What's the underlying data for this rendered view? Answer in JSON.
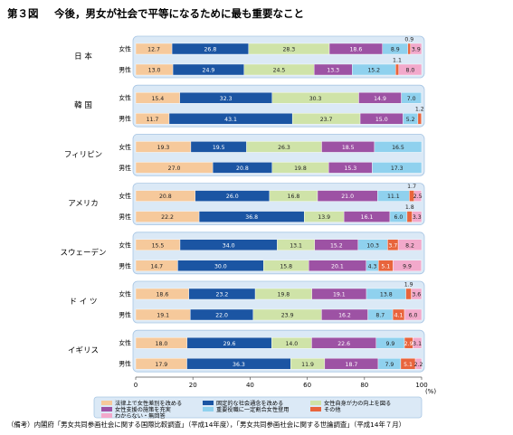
{
  "chart_data": {
    "type": "bar",
    "orientation": "horizontal",
    "stacked": true,
    "figure_label": "第３図",
    "title": "今後，男女が社会で平等になるために最も重要なこと",
    "x_unit": "(%)",
    "xlim": [
      0,
      100
    ],
    "x_ticks": [
      0,
      20,
      40,
      60,
      80,
      100
    ],
    "segments": [
      {
        "name": "法律上で女性差別を改める",
        "color": "#f6c99b"
      },
      {
        "name": "固定的な社会通念を改める",
        "color": "#1b55a3"
      },
      {
        "name": "女性自身が力の向上を図る",
        "color": "#cfe3a8"
      },
      {
        "name": "女性支援の施策を充実",
        "color": "#9d52a4"
      },
      {
        "name": "重要役職に一定割合女性登用",
        "color": "#8fd1ee"
      },
      {
        "name": "その他",
        "color": "#e8643c"
      },
      {
        "name": "わからない・無回答",
        "color": "#f2a9cb"
      }
    ],
    "groups": [
      {
        "country": "日 本",
        "rows": [
          {
            "sex": "女性",
            "values": [
              12.7,
              26.8,
              28.3,
              18.6,
              8.9,
              0.9,
              3.9
            ],
            "labels": [
              "12.7",
              "26.8",
              "28.3",
              "18.6",
              "8.9",
              "0.9",
              "3.9"
            ]
          },
          {
            "sex": "男性",
            "values": [
              13.0,
              24.9,
              24.5,
              13.3,
              15.2,
              1.1,
              8.0
            ],
            "labels": [
              "13.0",
              "24.9",
              "24.5",
              "13.3",
              "15.2",
              "1.1",
              "8.0"
            ]
          }
        ]
      },
      {
        "country": "韓 国",
        "rows": [
          {
            "sex": "女性",
            "values": [
              15.4,
              32.3,
              30.3,
              14.9,
              7.0,
              0,
              0
            ],
            "labels": [
              "15.4",
              "32.3",
              "30.3",
              "14.9",
              "7.0",
              "",
              ""
            ]
          },
          {
            "sex": "男性",
            "values": [
              11.7,
              43.1,
              23.7,
              15.0,
              5.2,
              1.2,
              0
            ],
            "labels": [
              "11.7",
              "43.1",
              "23.7",
              "15.0",
              "5.2",
              "1.2",
              ""
            ]
          }
        ]
      },
      {
        "country": "フィリピン",
        "rows": [
          {
            "sex": "女性",
            "values": [
              19.3,
              19.5,
              26.3,
              18.5,
              16.5,
              0,
              0
            ],
            "labels": [
              "19.3",
              "19.5",
              "26.3",
              "18.5",
              "16.5",
              "",
              ""
            ]
          },
          {
            "sex": "男性",
            "values": [
              27.0,
              20.8,
              19.8,
              15.3,
              17.3,
              0,
              0
            ],
            "labels": [
              "27.0",
              "20.8",
              "19.8",
              "15.3",
              "17.3",
              "",
              ""
            ]
          }
        ]
      },
      {
        "country": "アメリカ",
        "rows": [
          {
            "sex": "女性",
            "values": [
              20.8,
              26.0,
              16.8,
              21.0,
              11.1,
              1.7,
              2.5
            ],
            "labels": [
              "20.8",
              "26.0",
              "16.8",
              "21.0",
              "11.1",
              "1.7",
              "2.5"
            ]
          },
          {
            "sex": "男性",
            "values": [
              22.2,
              36.8,
              13.9,
              16.1,
              6.0,
              1.8,
              3.3
            ],
            "labels": [
              "22.2",
              "36.8",
              "13.9",
              "16.1",
              "6.0",
              "1.8",
              "3.3"
            ]
          }
        ]
      },
      {
        "country": "スウェーデン",
        "rows": [
          {
            "sex": "女性",
            "values": [
              15.5,
              34.0,
              13.1,
              15.2,
              10.3,
              3.7,
              8.2
            ],
            "labels": [
              "15.5",
              "34.0",
              "13.1",
              "15.2",
              "10.3",
              "3.7",
              "8.2"
            ]
          },
          {
            "sex": "男性",
            "values": [
              14.7,
              30.0,
              15.8,
              20.1,
              4.3,
              5.1,
              9.9
            ],
            "labels": [
              "14.7",
              "30.0",
              "15.8",
              "20.1",
              "4.3",
              "5.1",
              "9.9"
            ]
          }
        ]
      },
      {
        "country": "ド イ ツ",
        "rows": [
          {
            "sex": "女性",
            "values": [
              18.6,
              23.2,
              19.8,
              19.1,
              13.8,
              1.9,
              3.6
            ],
            "labels": [
              "18.6",
              "23.2",
              "19.8",
              "19.1",
              "13.8",
              "1.9",
              "3.6"
            ]
          },
          {
            "sex": "男性",
            "values": [
              19.1,
              22.0,
              23.9,
              16.2,
              8.7,
              4.1,
              6.0
            ],
            "labels": [
              "19.1",
              "22.0",
              "23.9",
              "16.2",
              "8.7",
              "4.1",
              "6.0"
            ]
          }
        ]
      },
      {
        "country": "イギリス",
        "rows": [
          {
            "sex": "女性",
            "values": [
              18.0,
              29.6,
              14.0,
              22.6,
              9.9,
              2.9,
              3.1
            ],
            "labels": [
              "18.0",
              "29.6",
              "14.0",
              "22.6",
              "9.9",
              "2.9",
              "3.1"
            ]
          },
          {
            "sex": "男性",
            "values": [
              17.9,
              36.3,
              11.9,
              18.7,
              7.9,
              5.1,
              2.2
            ],
            "labels": [
              "17.9",
              "36.3",
              "11.9",
              "18.7",
              "7.9",
              "5.1",
              "2.2"
            ]
          }
        ]
      }
    ],
    "legend_position": "bottom",
    "note": "（備考）内閣府「男女共同参画社会に関する国際比較調査」（平成14年度），「男女共同参画社会に関する世論調査」（平成14年７月）"
  }
}
